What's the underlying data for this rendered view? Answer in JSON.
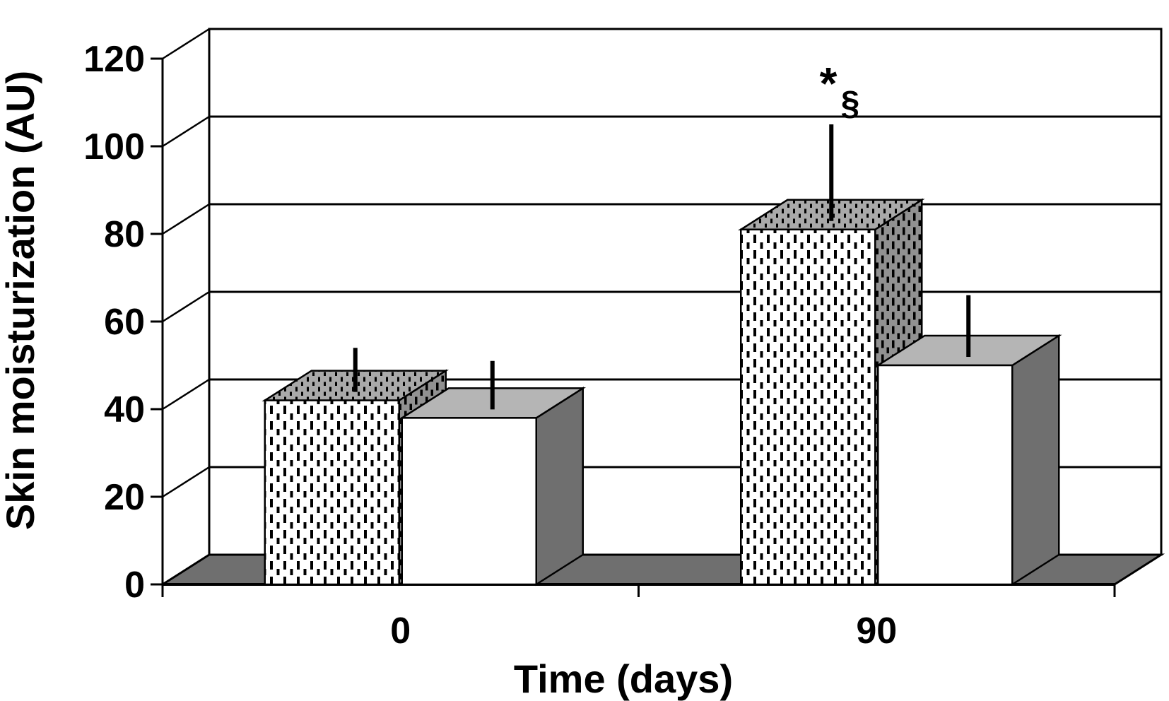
{
  "page": {
    "background": "#ffffff"
  },
  "chart_data": {
    "type": "bar",
    "projection": "3d-clustered",
    "title": "",
    "xlabel": "Time (days)",
    "ylabel": "Skin moisturization (AU)",
    "categories": [
      "0",
      "90"
    ],
    "series": [
      {
        "name": "dotted",
        "style": "dotted-hatch",
        "values": [
          42,
          81
        ],
        "error_upper": [
          12,
          24
        ]
      },
      {
        "name": "white",
        "style": "solid-white",
        "values": [
          38,
          50
        ],
        "error_upper": [
          13,
          16
        ]
      }
    ],
    "ylim": [
      0,
      120
    ],
    "ytick_step": 20,
    "yticks": [
      "0",
      "20",
      "40",
      "60",
      "80",
      "100",
      "120"
    ],
    "grid": "horizontal-back-wall",
    "legend": "none",
    "annotation": {
      "star": "*",
      "section": "§",
      "applies_to": "dotted bar at category 90"
    }
  },
  "colors": {
    "background": "#ffffff",
    "ink": "#000000",
    "floor": "#6f6f6f",
    "white_bar_front": "#ffffff",
    "white_bar_top": "#b5b5b5",
    "white_bar_side": "#6f6f6f",
    "dotted_bar_front": "#ffffff",
    "dotted_bar_top": "#a9a9a9",
    "dotted_bar_side": "#919191"
  }
}
